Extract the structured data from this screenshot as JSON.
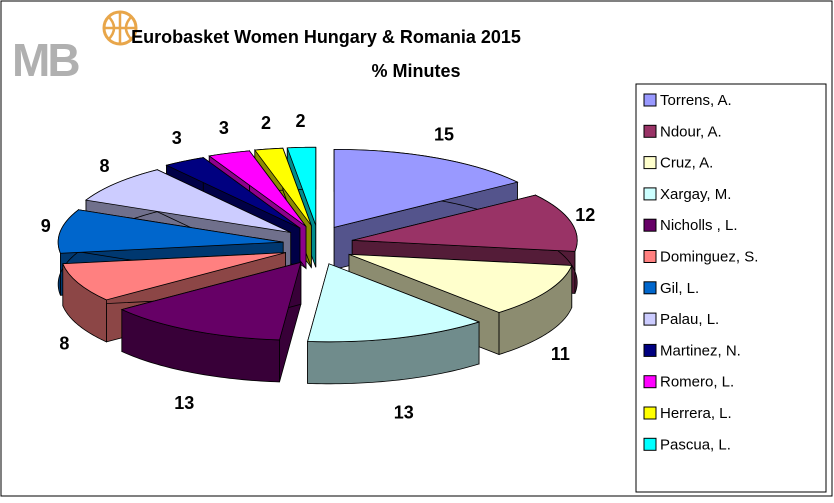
{
  "chart_data": {
    "type": "pie3d",
    "logo": "MB",
    "title": "Eurobasket Women Hungary & Romania 2015",
    "subtitle": "% Minutes",
    "categories": [
      "Torrens, A.",
      "Ndour, A.",
      "Cruz, A.",
      "Xargay, M.",
      "Nicholls , L.",
      "Dominguez, S.",
      "Gil, L.",
      "Palau, L.",
      "Martinez, N.",
      "Romero, L.",
      "Herrera, L.",
      "Pascua, L."
    ],
    "values": [
      15,
      12,
      11,
      13,
      13,
      8,
      9,
      8,
      3,
      3,
      2,
      2
    ],
    "colors": [
      "#9999ff",
      "#993366",
      "#ffffcc",
      "#ccffff",
      "#660066",
      "#ff8080",
      "#0066cc",
      "#ccccff",
      "#000080",
      "#ff00ff",
      "#ffff00",
      "#00ffff"
    ],
    "legend": "right"
  }
}
